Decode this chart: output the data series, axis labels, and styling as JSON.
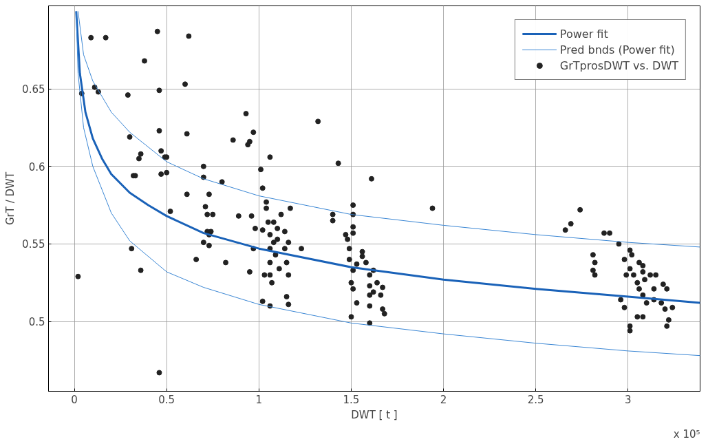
{
  "chart_data": {
    "type": "scatter",
    "xlabel": "DWT [ t ]",
    "ylabel": "GrT / DWT",
    "annotations": [
      "x 10⁵"
    ],
    "xlim": [
      -0.14,
      3.39
    ],
    "ylim": [
      0.455,
      0.7035
    ],
    "xticks": [
      0,
      0.5,
      1,
      1.5,
      2,
      2.5,
      3
    ],
    "yticks": [
      0.5,
      0.55,
      0.6,
      0.65
    ],
    "grid": true,
    "legend": "top right",
    "series": [
      {
        "name": "GrTprosDWT vs. DWT",
        "marker": "circle",
        "color": "#222222",
        "x": [
          0.02,
          0.04,
          0.09,
          0.11,
          0.13,
          0.17,
          0.29,
          0.3,
          0.31,
          0.32,
          0.33,
          0.35,
          0.36,
          0.36,
          0.38,
          0.45,
          0.46,
          0.46,
          0.46,
          0.47,
          0.47,
          0.49,
          0.5,
          0.5,
          0.52,
          0.6,
          0.61,
          0.62,
          0.61,
          0.66,
          0.7,
          0.7,
          0.71,
          0.72,
          0.73,
          0.72,
          0.73,
          0.74,
          0.7,
          0.73,
          0.75,
          0.8,
          0.82,
          0.86,
          0.89,
          0.93,
          0.94,
          0.95,
          0.95,
          0.96,
          0.97,
          0.97,
          0.98,
          1.01,
          1.02,
          1.02,
          1.06,
          1.06,
          1.08,
          1.04,
          1.04,
          1.05,
          1.06,
          1.06,
          1.06,
          1.06,
          1.07,
          1.08,
          1.09,
          1.1,
          1.1,
          1.11,
          1.12,
          1.14,
          1.14,
          1.15,
          1.16,
          1.15,
          1.16,
          1.17,
          1.16,
          1.03,
          1.02,
          1.23,
          1.43,
          1.32,
          1.4,
          1.4,
          1.51,
          1.51,
          1.51,
          1.51,
          1.47,
          1.48,
          1.49,
          1.49,
          1.51,
          1.5,
          1.51,
          1.53,
          1.5,
          1.53,
          1.56,
          1.58,
          1.6,
          1.6,
          1.6,
          1.6,
          1.6,
          1.62,
          1.64,
          1.66,
          1.67,
          1.68,
          1.61,
          1.56,
          1.62,
          1.67,
          1.94,
          2.74,
          2.69,
          2.66,
          2.87,
          2.9,
          2.95,
          2.81,
          2.82,
          2.81,
          2.82,
          3.01,
          3.02,
          2.98,
          2.99,
          3.01,
          3.03,
          3.05,
          3.06,
          3.08,
          3.1,
          3.08,
          3.12,
          3.14,
          3.14,
          3.15,
          3.19,
          3.18,
          3.2,
          3.22,
          3.21,
          3.24,
          3.21,
          3.08,
          3.08,
          3.01,
          3.01,
          3.05,
          2.96,
          2.98,
          3.06,
          3.09
        ],
        "values": [
          0.529,
          0.647,
          0.683,
          0.651,
          0.648,
          0.683,
          0.646,
          0.619,
          0.547,
          0.594,
          0.594,
          0.605,
          0.608,
          0.533,
          0.668,
          0.687,
          0.649,
          0.623,
          0.467,
          0.61,
          0.595,
          0.606,
          0.606,
          0.596,
          0.571,
          0.653,
          0.621,
          0.684,
          0.582,
          0.54,
          0.6,
          0.593,
          0.574,
          0.569,
          0.582,
          0.558,
          0.549,
          0.558,
          0.551,
          0.556,
          0.569,
          0.59,
          0.538,
          0.617,
          0.568,
          0.634,
          0.614,
          0.532,
          0.616,
          0.568,
          0.622,
          0.547,
          0.56,
          0.598,
          0.586,
          0.513,
          0.606,
          0.51,
          0.564,
          0.577,
          0.573,
          0.564,
          0.556,
          0.547,
          0.538,
          0.53,
          0.525,
          0.551,
          0.543,
          0.56,
          0.553,
          0.534,
          0.569,
          0.558,
          0.547,
          0.538,
          0.53,
          0.516,
          0.511,
          0.573,
          0.551,
          0.53,
          0.559,
          0.547,
          0.602,
          0.629,
          0.569,
          0.565,
          0.575,
          0.569,
          0.561,
          0.557,
          0.556,
          0.553,
          0.547,
          0.54,
          0.533,
          0.525,
          0.521,
          0.512,
          0.503,
          0.537,
          0.542,
          0.538,
          0.53,
          0.523,
          0.517,
          0.51,
          0.499,
          0.533,
          0.525,
          0.517,
          0.508,
          0.505,
          0.592,
          0.545,
          0.519,
          0.522,
          0.573,
          0.572,
          0.563,
          0.559,
          0.557,
          0.557,
          0.55,
          0.543,
          0.538,
          0.533,
          0.53,
          0.546,
          0.543,
          0.54,
          0.53,
          0.534,
          0.53,
          0.525,
          0.521,
          0.517,
          0.512,
          0.532,
          0.53,
          0.521,
          0.514,
          0.53,
          0.524,
          0.512,
          0.508,
          0.501,
          0.497,
          0.509,
          0.521,
          0.536,
          0.503,
          0.497,
          0.494,
          0.503,
          0.514,
          0.509,
          0.538,
          0.527
        ]
      },
      {
        "name": "Power fit",
        "type": "line",
        "color": "#1a62b8",
        "x": [
          0.01,
          0.03,
          0.06,
          0.1,
          0.15,
          0.2,
          0.3,
          0.4,
          0.5,
          0.7,
          1.0,
          1.5,
          2.0,
          2.5,
          3.0,
          3.39
        ],
        "values": [
          0.7,
          0.66,
          0.635,
          0.618,
          0.605,
          0.595,
          0.583,
          0.575,
          0.568,
          0.557,
          0.547,
          0.535,
          0.527,
          0.521,
          0.516,
          0.512
        ]
      },
      {
        "name": "Pred bnds (Power fit)",
        "type": "line",
        "color": "#3a86d4",
        "x": [
          0.02,
          0.05,
          0.1,
          0.2,
          0.3,
          0.5,
          0.7,
          1.0,
          1.5,
          2.0,
          2.5,
          3.0,
          3.39
        ],
        "values": [
          0.7,
          0.672,
          0.655,
          0.635,
          0.622,
          0.603,
          0.592,
          0.581,
          0.569,
          0.562,
          0.556,
          0.551,
          0.548
        ]
      },
      {
        "type": "line",
        "color": "#3a86d4",
        "x": [
          0.01,
          0.02,
          0.05,
          0.1,
          0.2,
          0.3,
          0.5,
          0.7,
          1.0,
          1.5,
          2.0,
          2.5,
          3.0,
          3.39
        ],
        "values": [
          0.7,
          0.66,
          0.625,
          0.6,
          0.57,
          0.552,
          0.532,
          0.522,
          0.511,
          0.499,
          0.492,
          0.486,
          0.481,
          0.478
        ]
      }
    ]
  }
}
